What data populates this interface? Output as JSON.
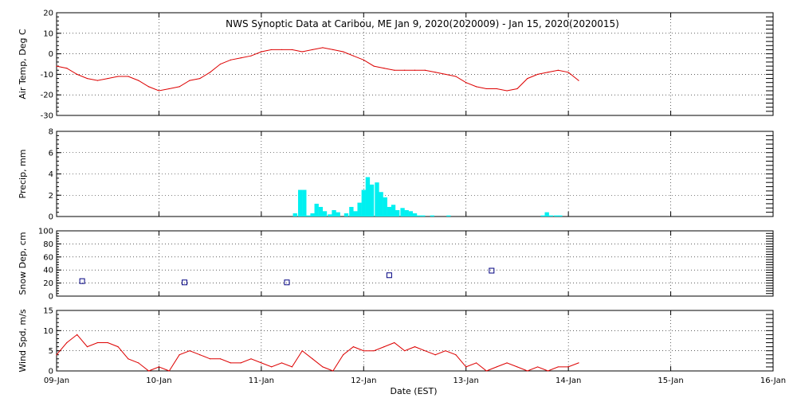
{
  "title": "NWS Synoptic Data at Caribou, ME   Jan  9, 2020(2020009) - Jan 15, 2020(2020015)",
  "xlabel": "Date (EST)",
  "colors": {
    "temp": "#dd0000",
    "precip": "#00f0f0",
    "snow": "#000080",
    "wind": "#dd0000"
  },
  "chart_data": [
    {
      "type": "line",
      "ylabel": "Air Temp, Deg C",
      "ylim": [
        -30,
        20
      ],
      "yticks": [
        "-30",
        "-20",
        "-10",
        "0",
        "10",
        "20"
      ],
      "xlim": [
        0,
        7
      ],
      "x_tick_labels": [
        "09-Jan",
        "10-Jan",
        "11-Jan",
        "12-Jan",
        "13-Jan",
        "14-Jan",
        "15-Jan",
        "16-Jan"
      ],
      "grid": true,
      "series": [
        {
          "x": [
            0,
            0.1,
            0.2,
            0.3,
            0.4,
            0.5,
            0.6,
            0.7,
            0.8,
            0.9,
            1.0,
            1.1,
            1.2,
            1.3,
            1.4,
            1.5,
            1.6,
            1.7,
            1.8,
            1.9,
            2.0,
            2.1,
            2.2,
            2.3,
            2.4,
            2.5,
            2.6,
            2.7,
            2.8,
            2.9,
            3.0,
            3.1,
            3.2,
            3.3,
            3.4,
            3.5,
            3.6,
            3.7,
            3.8,
            3.9,
            4.0,
            4.1,
            4.2,
            4.3,
            4.4,
            4.5,
            4.6,
            4.7,
            4.8,
            4.9,
            5.0,
            5.1
          ],
          "y": [
            -6,
            -7,
            -10,
            -12,
            -13,
            -12,
            -11,
            -11,
            -13,
            -16,
            -18,
            -17,
            -16,
            -13,
            -12,
            -9,
            -5,
            -3,
            -2,
            -1,
            1,
            2,
            2,
            2,
            1,
            2,
            3,
            2,
            1,
            -1,
            -3,
            -6,
            -7,
            -8,
            -8,
            -8,
            -8,
            -9,
            -10,
            -11,
            -14,
            -16,
            -17,
            -17,
            -18,
            -17,
            -12,
            -10,
            -9,
            -8,
            -9,
            -13
          ]
        }
      ]
    },
    {
      "type": "bar",
      "ylabel": "Precip, mm",
      "ylim": [
        0,
        8
      ],
      "yticks": [
        "0",
        "2",
        "4",
        "6",
        "8"
      ],
      "xlim": [
        0,
        7
      ],
      "x_tick_labels": [
        "09-Jan",
        "10-Jan",
        "11-Jan",
        "12-Jan",
        "13-Jan",
        "14-Jan",
        "15-Jan",
        "16-Jan"
      ],
      "grid": true,
      "series": [
        {
          "x": [
            2.33,
            2.38,
            2.42,
            2.46,
            2.5,
            2.54,
            2.58,
            2.62,
            2.67,
            2.71,
            2.75,
            2.79,
            2.83,
            2.88,
            2.92,
            2.96,
            3.0,
            3.04,
            3.08,
            3.13,
            3.17,
            3.21,
            3.25,
            3.29,
            3.33,
            3.38,
            3.42,
            3.46,
            3.5,
            3.54,
            3.58,
            3.62,
            3.67,
            3.71,
            3.75,
            3.83,
            4.75,
            4.79,
            4.83,
            4.88,
            4.92
          ],
          "values": [
            0.3,
            2.5,
            2.5,
            0.1,
            0.3,
            1.2,
            0.9,
            0.5,
            0.2,
            0.6,
            0.4,
            0.0,
            0.3,
            0.9,
            0.5,
            1.3,
            2.5,
            3.7,
            3.0,
            3.2,
            2.3,
            1.8,
            0.9,
            1.1,
            0.6,
            0.8,
            0.6,
            0.5,
            0.3,
            0.1,
            0.1,
            0.0,
            0.1,
            0.0,
            0.0,
            0.1,
            0.1,
            0.4,
            0.1,
            0.1,
            0.1
          ]
        }
      ]
    },
    {
      "type": "scatter",
      "ylabel": "Snow Dep, cm",
      "ylim": [
        0,
        100
      ],
      "yticks": [
        "0",
        "20",
        "40",
        "60",
        "80",
        "100"
      ],
      "xlim": [
        0,
        7
      ],
      "x_tick_labels": [
        "09-Jan",
        "10-Jan",
        "11-Jan",
        "12-Jan",
        "13-Jan",
        "14-Jan",
        "15-Jan",
        "16-Jan"
      ],
      "grid": true,
      "series": [
        {
          "x": [
            0.25,
            1.25,
            2.25,
            3.25,
            4.25
          ],
          "y": [
            23,
            21,
            21,
            32,
            39
          ]
        }
      ]
    },
    {
      "type": "line",
      "ylabel": "Wind Spd, m/s",
      "ylim": [
        0,
        15
      ],
      "yticks": [
        "0",
        "5",
        "10",
        "15"
      ],
      "xlim": [
        0,
        7
      ],
      "x_tick_labels": [
        "09-Jan",
        "10-Jan",
        "11-Jan",
        "12-Jan",
        "13-Jan",
        "14-Jan",
        "15-Jan",
        "16-Jan"
      ],
      "xlabel": "Date (EST)",
      "grid": true,
      "series": [
        {
          "x": [
            0,
            0.1,
            0.2,
            0.3,
            0.4,
            0.5,
            0.6,
            0.7,
            0.8,
            0.9,
            1.0,
            1.1,
            1.2,
            1.3,
            1.4,
            1.5,
            1.6,
            1.7,
            1.8,
            1.9,
            2.0,
            2.1,
            2.2,
            2.3,
            2.4,
            2.5,
            2.6,
            2.7,
            2.8,
            2.9,
            3.0,
            3.1,
            3.2,
            3.3,
            3.4,
            3.5,
            3.6,
            3.7,
            3.8,
            3.9,
            4.0,
            4.1,
            4.2,
            4.3,
            4.4,
            4.5,
            4.6,
            4.7,
            4.8,
            4.9,
            5.0,
            5.1
          ],
          "y": [
            4,
            7,
            9,
            6,
            7,
            7,
            6,
            3,
            2,
            0,
            1,
            0,
            4,
            5,
            4,
            3,
            3,
            2,
            2,
            3,
            2,
            1,
            2,
            1,
            5,
            3,
            1,
            0,
            4,
            6,
            5,
            5,
            6,
            7,
            5,
            6,
            5,
            4,
            5,
            4,
            1,
            2,
            0,
            1,
            2,
            1,
            0,
            1,
            0,
            1,
            1,
            2
          ]
        }
      ]
    }
  ]
}
